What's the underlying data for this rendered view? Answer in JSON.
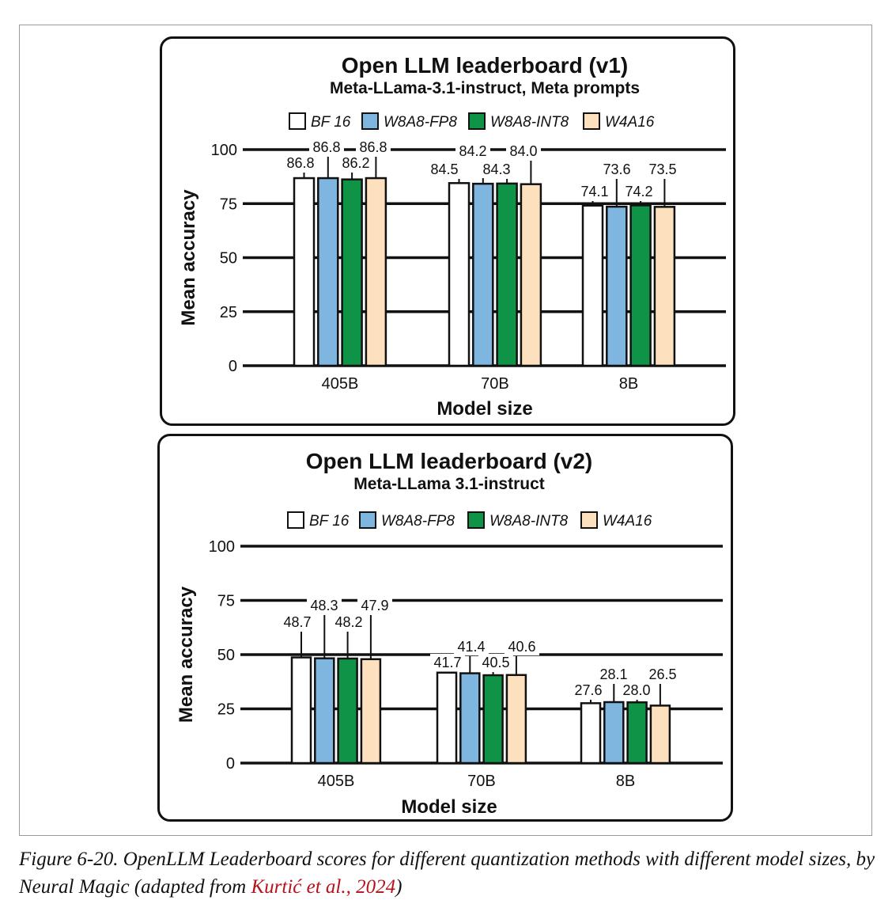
{
  "chart_data": [
    {
      "type": "bar",
      "title": "Open LLM leaderboard (v1)",
      "subtitle": "Meta-LLama-3.1-instruct, Meta prompts",
      "xlabel": "Model size",
      "ylabel": "Mean accuracy",
      "categories": [
        "405B",
        "70B",
        "8B"
      ],
      "yticks": [
        0,
        25,
        50,
        75,
        100
      ],
      "ylim": [
        0,
        100
      ],
      "grid": true,
      "legend_position": "top",
      "series": [
        {
          "name": "BF 16",
          "color": "#ffffff",
          "values": [
            86.8,
            84.5,
            74.1
          ],
          "labels": [
            "86.8",
            "84.5",
            "74.1"
          ]
        },
        {
          "name": "W8A8-FP8",
          "color": "#7fb6e0",
          "values": [
            86.8,
            84.2,
            73.6
          ],
          "labels": [
            "86.8",
            "84.2",
            "73.6"
          ]
        },
        {
          "name": "W8A8-INT8",
          "color": "#0f9447",
          "values": [
            86.2,
            84.3,
            74.2
          ],
          "labels": [
            "86.2",
            "84.3",
            "74.2"
          ]
        },
        {
          "name": "W4A16",
          "color": "#fde0bd",
          "values": [
            86.8,
            84.0,
            73.5
          ],
          "labels": [
            "86.8",
            "84.0",
            "73.5"
          ]
        }
      ]
    },
    {
      "type": "bar",
      "title": "Open LLM leaderboard (v2)",
      "subtitle": "Meta-LLama 3.1-instruct",
      "xlabel": "Model size",
      "ylabel": "Mean accuracy",
      "categories": [
        "405B",
        "70B",
        "8B"
      ],
      "yticks": [
        0,
        25,
        50,
        75,
        100
      ],
      "ylim": [
        0,
        100
      ],
      "grid": true,
      "legend_position": "top",
      "series": [
        {
          "name": "BF 16",
          "color": "#ffffff",
          "values": [
            48.7,
            41.7,
            27.6
          ],
          "labels": [
            "48.7",
            "41.7",
            "27.6"
          ]
        },
        {
          "name": "W8A8-FP8",
          "color": "#7fb6e0",
          "values": [
            48.3,
            41.4,
            28.1
          ],
          "labels": [
            "48.3",
            "41.4",
            "28.1"
          ]
        },
        {
          "name": "W8A8-INT8",
          "color": "#0f9447",
          "values": [
            48.2,
            40.5,
            28.0
          ],
          "labels": [
            "48.2",
            "40.5",
            "28.0"
          ]
        },
        {
          "name": "W4A16",
          "color": "#fde0bd",
          "values": [
            47.9,
            40.6,
            26.5
          ],
          "labels": [
            "47.9",
            "40.6",
            "26.5"
          ]
        }
      ]
    }
  ],
  "caption": {
    "text": "Figure 6-20. OpenLLM Leaderboard scores for different quantization methods with different model sizes, by Neural Magic (adapted from ",
    "link": "Kurtić et al., 2024",
    "close": ")"
  }
}
